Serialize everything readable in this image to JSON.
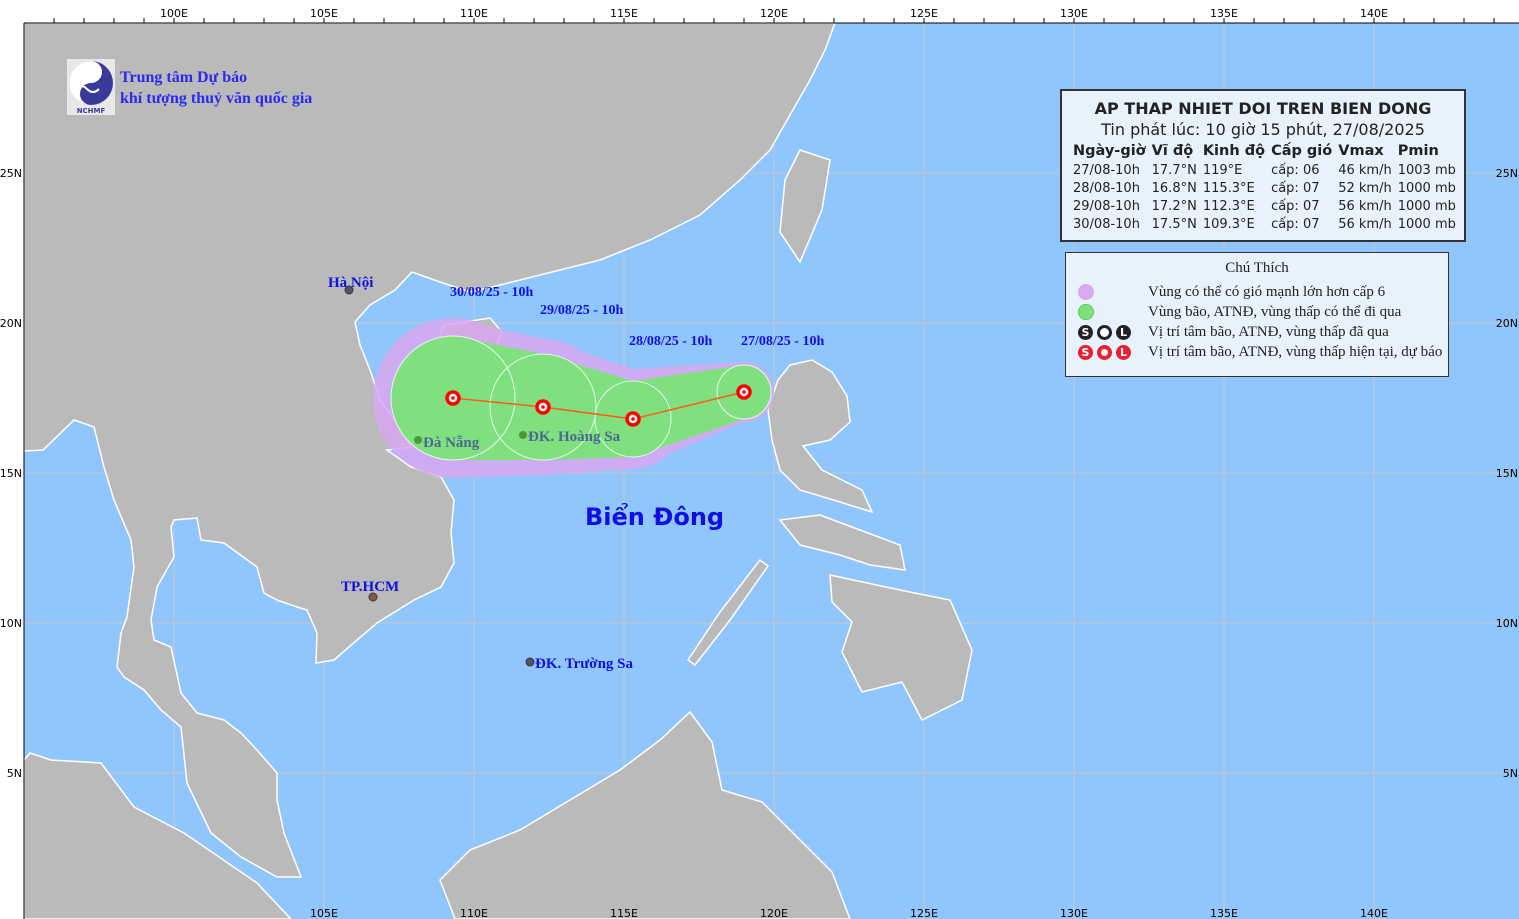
{
  "colors": {
    "sea": "#90c6fc",
    "land": "#bababa",
    "strong_wind_zone": "#d8a8f0",
    "storm_zone": "#80e080",
    "forecast_point": "#ff0000",
    "label": "#1010e0"
  },
  "map": {
    "lon_labels_top": [
      "100E",
      "105E",
      "110E",
      "115E",
      "120E",
      "125E",
      "130E",
      "135E",
      "140E"
    ],
    "lon_labels_bottom": [
      "105E",
      "110E",
      "115E",
      "120E",
      "125E",
      "130E",
      "135E",
      "140E"
    ],
    "lat_labels": [
      "25N",
      "20N",
      "15N",
      "10N",
      "5N"
    ],
    "places": {
      "ha_noi": "Hà Nội",
      "da_nang": "Đà Nẵng",
      "hoang_sa": "ĐK. Hoàng Sa",
      "tp_hcm": "TP.HCM",
      "truong_sa": "ĐK. Trường Sa"
    },
    "sea_name": "Biển Đông"
  },
  "logo": {
    "line1": "Trung tâm Dự báo",
    "line2": "khí tượng thuỷ văn quốc gia",
    "emblem_text": "NCHMF"
  },
  "bulletin": {
    "title": "AP THAP NHIET DOI TREN BIEN DONG",
    "issued": "Tin phát lúc: 10 giờ 15 phút, 27/08/2025",
    "headers": [
      "Ngày-giờ",
      "Vĩ độ",
      "Kinh độ",
      "Cấp gió",
      "Vmax",
      "Pmin"
    ],
    "rows": [
      {
        "time": "27/08-10h",
        "lat": "17.7°N",
        "lon": "119°E",
        "level": "cấp: 06",
        "vmax": "46 km/h",
        "pmin": "1003 mb",
        "label": "27/08/25 - 10h"
      },
      {
        "time": "28/08-10h",
        "lat": "16.8°N",
        "lon": "115.3°E",
        "level": "cấp: 07",
        "vmax": "52 km/h",
        "pmin": "1000 mb",
        "label": "28/08/25 - 10h"
      },
      {
        "time": "29/08-10h",
        "lat": "17.2°N",
        "lon": "112.3°E",
        "level": "cấp: 07",
        "vmax": "56 km/h",
        "pmin": "1000 mb",
        "label": "29/08/25 - 10h"
      },
      {
        "time": "30/08-10h",
        "lat": "17.5°N",
        "lon": "109.3°E",
        "level": "cấp: 07",
        "vmax": "56 km/h",
        "pmin": "1000 mb",
        "label": "30/08/25 - 10h"
      }
    ]
  },
  "legend": {
    "title": "Chú Thích",
    "items": [
      "Vùng có thể có gió mạnh lớn hơn cấp 6",
      "Vùng bão, ATNĐ, vùng thấp có thể đi qua",
      "Vị trí tâm bão, ATNĐ, vùng thấp đã qua",
      "Vị trí tâm bão, ATNĐ, vùng thấp hiện tại, dự báo"
    ],
    "low_symbol": "L"
  }
}
